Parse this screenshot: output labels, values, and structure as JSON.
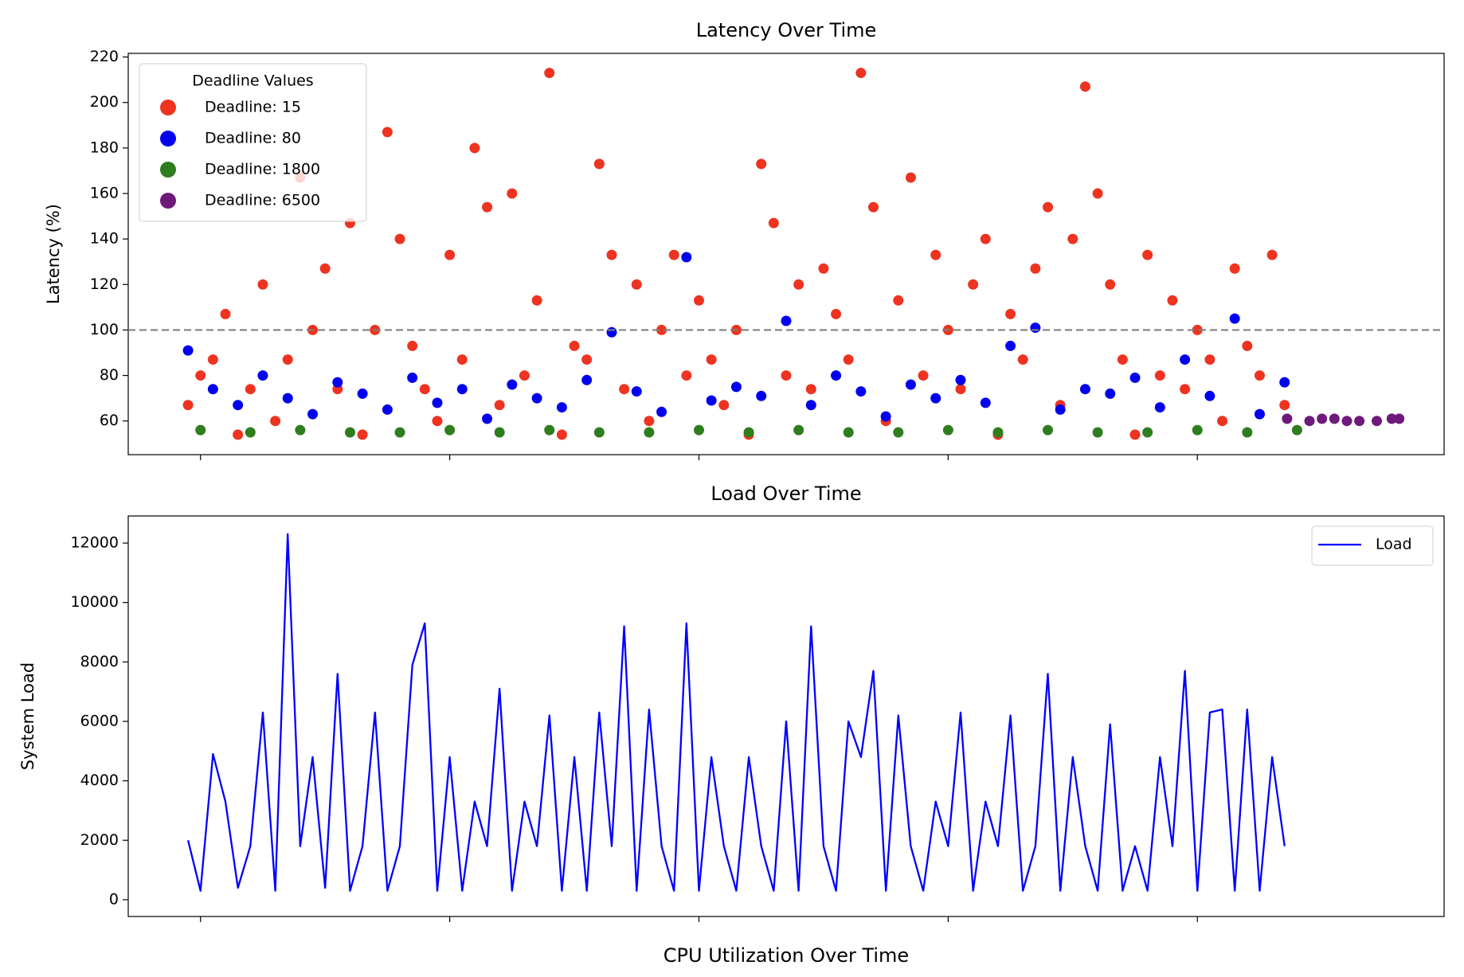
{
  "chart_data": [
    {
      "type": "scatter",
      "title": "Latency Over Time",
      "y_label": "Latency (%)",
      "xlim": [
        -0.29,
        4.99
      ],
      "xticks": [
        {
          "value": 0,
          "label": null
        },
        {
          "value": 1,
          "label": null
        },
        {
          "value": 2,
          "label": null
        },
        {
          "value": 3,
          "label": null
        },
        {
          "value": 4,
          "label": null
        }
      ],
      "ylim": [
        45.2,
        221.6
      ],
      "yticks": [
        60,
        80,
        100,
        120,
        140,
        160,
        180,
        200,
        220
      ],
      "hline": 100,
      "hline_color": "#808080",
      "legend_title": "Deadline Values",
      "legend": "upper left",
      "series": [
        {
          "name": "Deadline: 15",
          "color": "#ee3320",
          "x": [
            -0.05,
            0.0,
            0.05,
            0.1,
            0.15,
            0.2,
            0.25,
            0.3,
            0.35,
            0.4,
            0.45,
            0.5,
            0.55,
            0.6,
            0.65,
            0.7,
            0.75,
            0.8,
            0.85,
            0.9,
            0.95,
            1.0,
            1.05,
            1.1,
            1.15,
            1.2,
            1.25,
            1.3,
            1.35,
            1.4,
            1.45,
            1.5,
            1.55,
            1.6,
            1.65,
            1.7,
            1.75,
            1.8,
            1.85,
            1.9,
            1.95,
            2.0,
            2.05,
            2.1,
            2.15,
            2.2,
            2.25,
            2.3,
            2.35,
            2.4,
            2.45,
            2.5,
            2.55,
            2.6,
            2.65,
            2.7,
            2.75,
            2.8,
            2.85,
            2.9,
            2.95,
            3.0,
            3.05,
            3.1,
            3.15,
            3.2,
            3.25,
            3.3,
            3.35,
            3.4,
            3.45,
            3.5,
            3.55,
            3.6,
            3.65,
            3.7,
            3.75,
            3.8,
            3.85,
            3.9,
            3.95,
            4.0,
            4.05,
            4.1,
            4.15,
            4.2,
            4.25,
            4.3,
            4.35
          ],
          "values": [
            67,
            80,
            87,
            107,
            54,
            74,
            120,
            60,
            87,
            167,
            100,
            127,
            74,
            147,
            54,
            100,
            187,
            140,
            93,
            74,
            60,
            133,
            87,
            180,
            154,
            67,
            160,
            80,
            113,
            213,
            54,
            93,
            87,
            173,
            133,
            74,
            120,
            60,
            100,
            133,
            80,
            113,
            87,
            67,
            100,
            54,
            173,
            147,
            80,
            120,
            74,
            127,
            107,
            87,
            213,
            154,
            60,
            113,
            167,
            80,
            133,
            100,
            74,
            120,
            140,
            54,
            107,
            87,
            127,
            154,
            67,
            140,
            207,
            160,
            120,
            87,
            54,
            133,
            80,
            113,
            74,
            100,
            87,
            60,
            127,
            93,
            80,
            133,
            67
          ]
        },
        {
          "name": "Deadline: 80",
          "color": "#0000ee",
          "x": [
            -0.05,
            0.05,
            0.15,
            0.25,
            0.35,
            0.45,
            0.55,
            0.65,
            0.75,
            0.85,
            0.95,
            1.05,
            1.15,
            1.25,
            1.35,
            1.45,
            1.55,
            1.65,
            1.75,
            1.85,
            1.95,
            2.05,
            2.15,
            2.25,
            2.35,
            2.45,
            2.55,
            2.65,
            2.75,
            2.85,
            2.95,
            3.05,
            3.15,
            3.25,
            3.35,
            3.45,
            3.55,
            3.65,
            3.75,
            3.85,
            3.95,
            4.05,
            4.15,
            4.25,
            4.35
          ],
          "values": [
            91,
            74,
            67,
            80,
            70,
            63,
            77,
            72,
            65,
            79,
            68,
            74,
            61,
            76,
            70,
            66,
            78,
            99,
            73,
            64,
            132,
            69,
            75,
            71,
            104,
            67,
            80,
            73,
            62,
            76,
            70,
            78,
            68,
            93,
            101,
            65,
            74,
            72,
            79,
            66,
            87,
            71,
            105,
            63,
            77
          ]
        },
        {
          "name": "Deadline: 1800",
          "color": "#2e7d1e",
          "x": [
            0,
            0.2,
            0.4,
            0.6,
            0.8,
            1.0,
            1.2,
            1.4,
            1.6,
            1.8,
            2.0,
            2.2,
            2.4,
            2.6,
            2.8,
            3.0,
            3.2,
            3.4,
            3.6,
            3.8,
            4.0,
            4.2,
            4.4
          ],
          "values": [
            56,
            55,
            56,
            55,
            55,
            56,
            55,
            56,
            55,
            55,
            56,
            55,
            56,
            55,
            55,
            56,
            55,
            56,
            55,
            55,
            56,
            55,
            56
          ]
        },
        {
          "name": "Deadline: 6500",
          "color": "#6e1a7a",
          "x": [
            4.36,
            4.45,
            4.5,
            4.55,
            4.6,
            4.65,
            4.72,
            4.78,
            4.81
          ],
          "values": [
            61,
            60,
            61,
            61,
            60,
            60,
            60,
            61,
            61
          ]
        }
      ]
    },
    {
      "type": "line",
      "title": "Load Over Time",
      "y_label": "System Load",
      "xlim": [
        -0.29,
        4.99
      ],
      "xticks": [
        {
          "value": 0,
          "label": null
        },
        {
          "value": 1,
          "label": null
        },
        {
          "value": 2,
          "label": null
        },
        {
          "value": 3,
          "label": null
        },
        {
          "value": 4,
          "label": null
        }
      ],
      "ylim": [
        -565,
        12912
      ],
      "yticks": [
        0,
        2000,
        4000,
        6000,
        8000,
        10000,
        12000
      ],
      "legend": "upper right",
      "series": [
        {
          "name": "Load",
          "color": "#0000ff",
          "x": [
            -0.05,
            0.0,
            0.05,
            0.1,
            0.15,
            0.2,
            0.25,
            0.3,
            0.35,
            0.4,
            0.45,
            0.5,
            0.55,
            0.6,
            0.65,
            0.7,
            0.75,
            0.8,
            0.85,
            0.9,
            0.95,
            1.0,
            1.05,
            1.1,
            1.15,
            1.2,
            1.25,
            1.3,
            1.35,
            1.4,
            1.45,
            1.5,
            1.55,
            1.6,
            1.65,
            1.7,
            1.75,
            1.8,
            1.85,
            1.9,
            1.95,
            2.0,
            2.05,
            2.1,
            2.15,
            2.2,
            2.25,
            2.3,
            2.35,
            2.4,
            2.45,
            2.5,
            2.55,
            2.6,
            2.65,
            2.7,
            2.75,
            2.8,
            2.85,
            2.9,
            2.95,
            3.0,
            3.05,
            3.1,
            3.15,
            3.2,
            3.25,
            3.3,
            3.35,
            3.4,
            3.45,
            3.5,
            3.55,
            3.6,
            3.65,
            3.7,
            3.75,
            3.8,
            3.85,
            3.9,
            3.95,
            4.0,
            4.05,
            4.1,
            4.15,
            4.2,
            4.25,
            4.3,
            4.35
          ],
          "values": [
            2000,
            300,
            4900,
            3300,
            400,
            1800,
            6300,
            300,
            12300,
            1800,
            4800,
            400,
            7600,
            300,
            1800,
            6300,
            300,
            1800,
            7900,
            9300,
            300,
            4800,
            300,
            3300,
            1800,
            7100,
            300,
            3300,
            1800,
            6200,
            300,
            4800,
            300,
            6300,
            1800,
            9200,
            300,
            6400,
            1800,
            300,
            9300,
            300,
            4800,
            1800,
            300,
            4800,
            1800,
            300,
            6000,
            300,
            9200,
            1800,
            300,
            6000,
            4800,
            7700,
            300,
            6200,
            1800,
            300,
            3300,
            1800,
            6300,
            300,
            3300,
            1800,
            6200,
            300,
            1800,
            7600,
            300,
            4800,
            1800,
            300,
            5900,
            300,
            1800,
            300,
            4800,
            1800,
            7700,
            300,
            6300,
            6400,
            300,
            6400,
            300,
            4800,
            1800
          ]
        }
      ]
    },
    {
      "type": "line",
      "title": "CPU Utilization Over Time"
    }
  ]
}
